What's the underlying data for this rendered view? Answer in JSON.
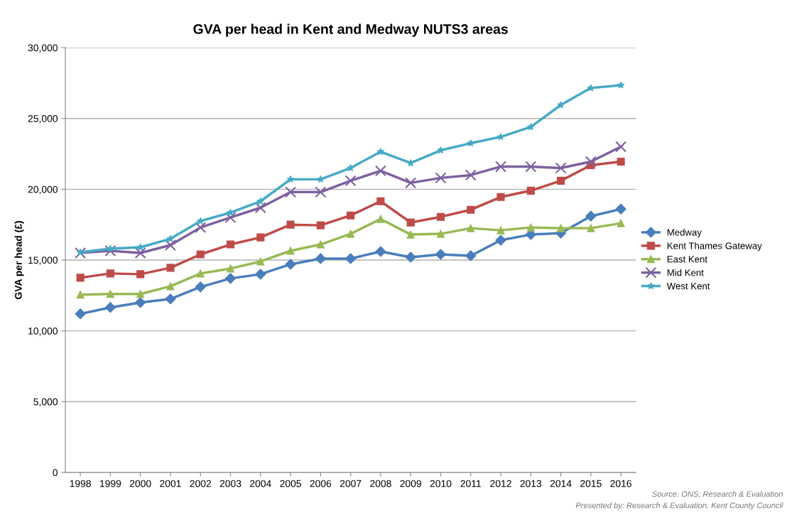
{
  "chart_data": {
    "type": "line",
    "title": "GVA per head in Kent and Medway NUTS3 areas",
    "ylabel": "GVA per head (£)",
    "categories": [
      "1998",
      "1999",
      "2000",
      "2001",
      "2002",
      "2003",
      "2004",
      "2005",
      "2006",
      "2007",
      "2008",
      "2009",
      "2010",
      "2011",
      "2012",
      "2013",
      "2014",
      "2015",
      "2016"
    ],
    "series": [
      {
        "name": "Medway",
        "color": "#4a7ebb",
        "marker": "diamond",
        "values": [
          11200,
          11650,
          12000,
          12250,
          13100,
          13700,
          14000,
          14700,
          15100,
          15100,
          15600,
          15200,
          15400,
          15300,
          16400,
          16800,
          16900,
          18100,
          18600
        ]
      },
      {
        "name": "Kent Thames Gateway",
        "color": "#be4b48",
        "marker": "square",
        "values": [
          13750,
          14050,
          14000,
          14450,
          15400,
          16100,
          16600,
          17500,
          17450,
          18150,
          19150,
          17650,
          18050,
          18550,
          19450,
          19900,
          20600,
          21700,
          21950
        ]
      },
      {
        "name": "East Kent",
        "color": "#98b954",
        "marker": "triangle",
        "values": [
          12550,
          12600,
          12600,
          13150,
          14050,
          14400,
          14900,
          15650,
          16100,
          16850,
          17900,
          16800,
          16850,
          17250,
          17100,
          17300,
          17250,
          17250,
          17600
        ]
      },
      {
        "name": "Mid Kent",
        "color": "#7d60a0",
        "marker": "cross",
        "values": [
          15500,
          15650,
          15500,
          16050,
          17300,
          18000,
          18700,
          19800,
          19800,
          20600,
          21300,
          20450,
          20800,
          21000,
          21600,
          21600,
          21500,
          21950,
          23000
        ]
      },
      {
        "name": "West Kent",
        "color": "#46aac5",
        "marker": "star",
        "values": [
          15550,
          15800,
          15900,
          16500,
          17750,
          18350,
          19150,
          20700,
          20700,
          21500,
          22650,
          21850,
          22750,
          23250,
          23700,
          24400,
          25950,
          27150,
          27350
        ]
      }
    ],
    "ylim": [
      0,
      30000
    ],
    "yticks": [
      {
        "value": 0,
        "label": "0"
      },
      {
        "value": 5000,
        "label": "5,000"
      },
      {
        "value": 10000,
        "label": "10,000"
      },
      {
        "value": 15000,
        "label": "15,000"
      },
      {
        "value": 20000,
        "label": "20,000"
      },
      {
        "value": 25000,
        "label": "25,000"
      },
      {
        "value": 30000,
        "label": "30,000"
      }
    ],
    "grid": "y",
    "legend": "right",
    "line_style": "solid",
    "annotations": [
      "Source: ONS; Research & Evaluation",
      "Presented by: Research & Evaluation, Kent County Council"
    ]
  }
}
